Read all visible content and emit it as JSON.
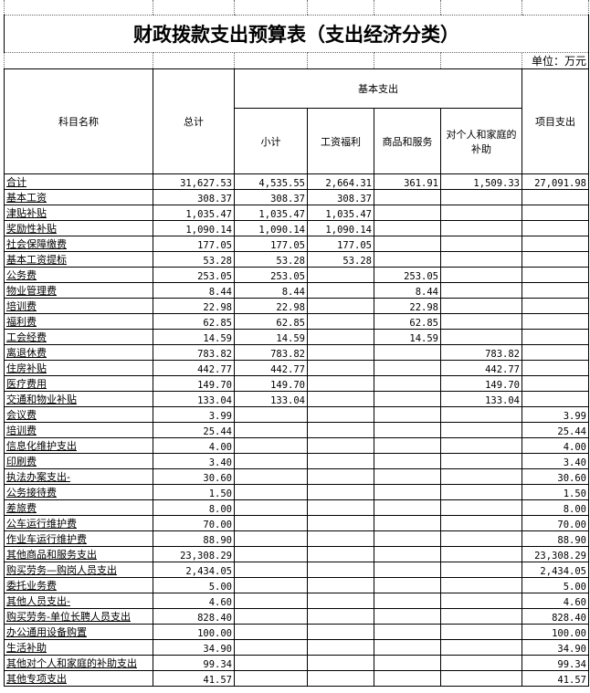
{
  "title": "财政拨款支出预算表（支出经济分类）",
  "unit": "单位：万元",
  "headers": {
    "name": "科目名称",
    "total": "总计",
    "basic": "基本支出",
    "subtotal": "小计",
    "salary": "工资福利",
    "goods": "商品和服务",
    "personal": "对个人和家庭的补助",
    "project": "项目支出"
  },
  "rows": [
    [
      "合计",
      "31,627.53",
      "4,535.55",
      "2,664.31",
      "361.91",
      "1,509.33",
      "27,091.98"
    ],
    [
      "基本工资",
      "308.37",
      "308.37",
      "308.37",
      "",
      "",
      ""
    ],
    [
      "津贴补贴",
      "1,035.47",
      "1,035.47",
      "1,035.47",
      "",
      "",
      ""
    ],
    [
      "奖励性补贴",
      "1,090.14",
      "1,090.14",
      "1,090.14",
      "",
      "",
      ""
    ],
    [
      "社会保障缴费",
      "177.05",
      "177.05",
      "177.05",
      "",
      "",
      ""
    ],
    [
      "基本工资提标",
      "53.28",
      "53.28",
      "53.28",
      "",
      "",
      ""
    ],
    [
      "公务费",
      "253.05",
      "253.05",
      "",
      "253.05",
      "",
      ""
    ],
    [
      "物业管理费",
      "8.44",
      "8.44",
      "",
      "8.44",
      "",
      ""
    ],
    [
      "培训费",
      "22.98",
      "22.98",
      "",
      "22.98",
      "",
      ""
    ],
    [
      "福利费",
      "62.85",
      "62.85",
      "",
      "62.85",
      "",
      ""
    ],
    [
      "工会经费",
      "14.59",
      "14.59",
      "",
      "14.59",
      "",
      ""
    ],
    [
      "离退休费",
      "783.82",
      "783.82",
      "",
      "",
      "783.82",
      ""
    ],
    [
      "住房补贴",
      "442.77",
      "442.77",
      "",
      "",
      "442.77",
      ""
    ],
    [
      "医疗费用",
      "149.70",
      "149.70",
      "",
      "",
      "149.70",
      ""
    ],
    [
      "交通和物业补贴",
      "133.04",
      "133.04",
      "",
      "",
      "133.04",
      ""
    ],
    [
      "会议费",
      "3.99",
      "",
      "",
      "",
      "",
      "3.99"
    ],
    [
      "培训费",
      "25.44",
      "",
      "",
      "",
      "",
      "25.44"
    ],
    [
      "信息化维护支出",
      "4.00",
      "",
      "",
      "",
      "",
      "4.00"
    ],
    [
      "印刷费",
      "3.40",
      "",
      "",
      "",
      "",
      "3.40"
    ],
    [
      "执法办案支出-",
      "30.60",
      "",
      "",
      "",
      "",
      "30.60"
    ],
    [
      "公务接待费",
      "1.50",
      "",
      "",
      "",
      "",
      "1.50"
    ],
    [
      "差旅费",
      "8.00",
      "",
      "",
      "",
      "",
      "8.00"
    ],
    [
      "公车运行维护费",
      "70.00",
      "",
      "",
      "",
      "",
      "70.00"
    ],
    [
      "作业车运行维护费",
      "88.90",
      "",
      "",
      "",
      "",
      "88.90"
    ],
    [
      "其他商品和服务支出",
      "23,308.29",
      "",
      "",
      "",
      "",
      "23,308.29"
    ],
    [
      "购买劳务—购岗人员支出",
      "2,434.05",
      "",
      "",
      "",
      "",
      "2,434.05"
    ],
    [
      "委托业务费",
      "5.00",
      "",
      "",
      "",
      "",
      "5.00"
    ],
    [
      "其他人员支出-",
      "4.60",
      "",
      "",
      "",
      "",
      "4.60"
    ],
    [
      "购买劳务-单位长聘人员支出",
      "828.40",
      "",
      "",
      "",
      "",
      "828.40"
    ],
    [
      "办公通用设备购置",
      "100.00",
      "",
      "",
      "",
      "",
      "100.00"
    ],
    [
      "生活补助",
      "34.90",
      "",
      "",
      "",
      "",
      "34.90"
    ],
    [
      "其他对个人和家庭的补助支出",
      "99.34",
      "",
      "",
      "",
      "",
      "99.34"
    ],
    [
      "其他专项支出",
      "41.57",
      "",
      "",
      "",
      "",
      "41.57"
    ]
  ]
}
